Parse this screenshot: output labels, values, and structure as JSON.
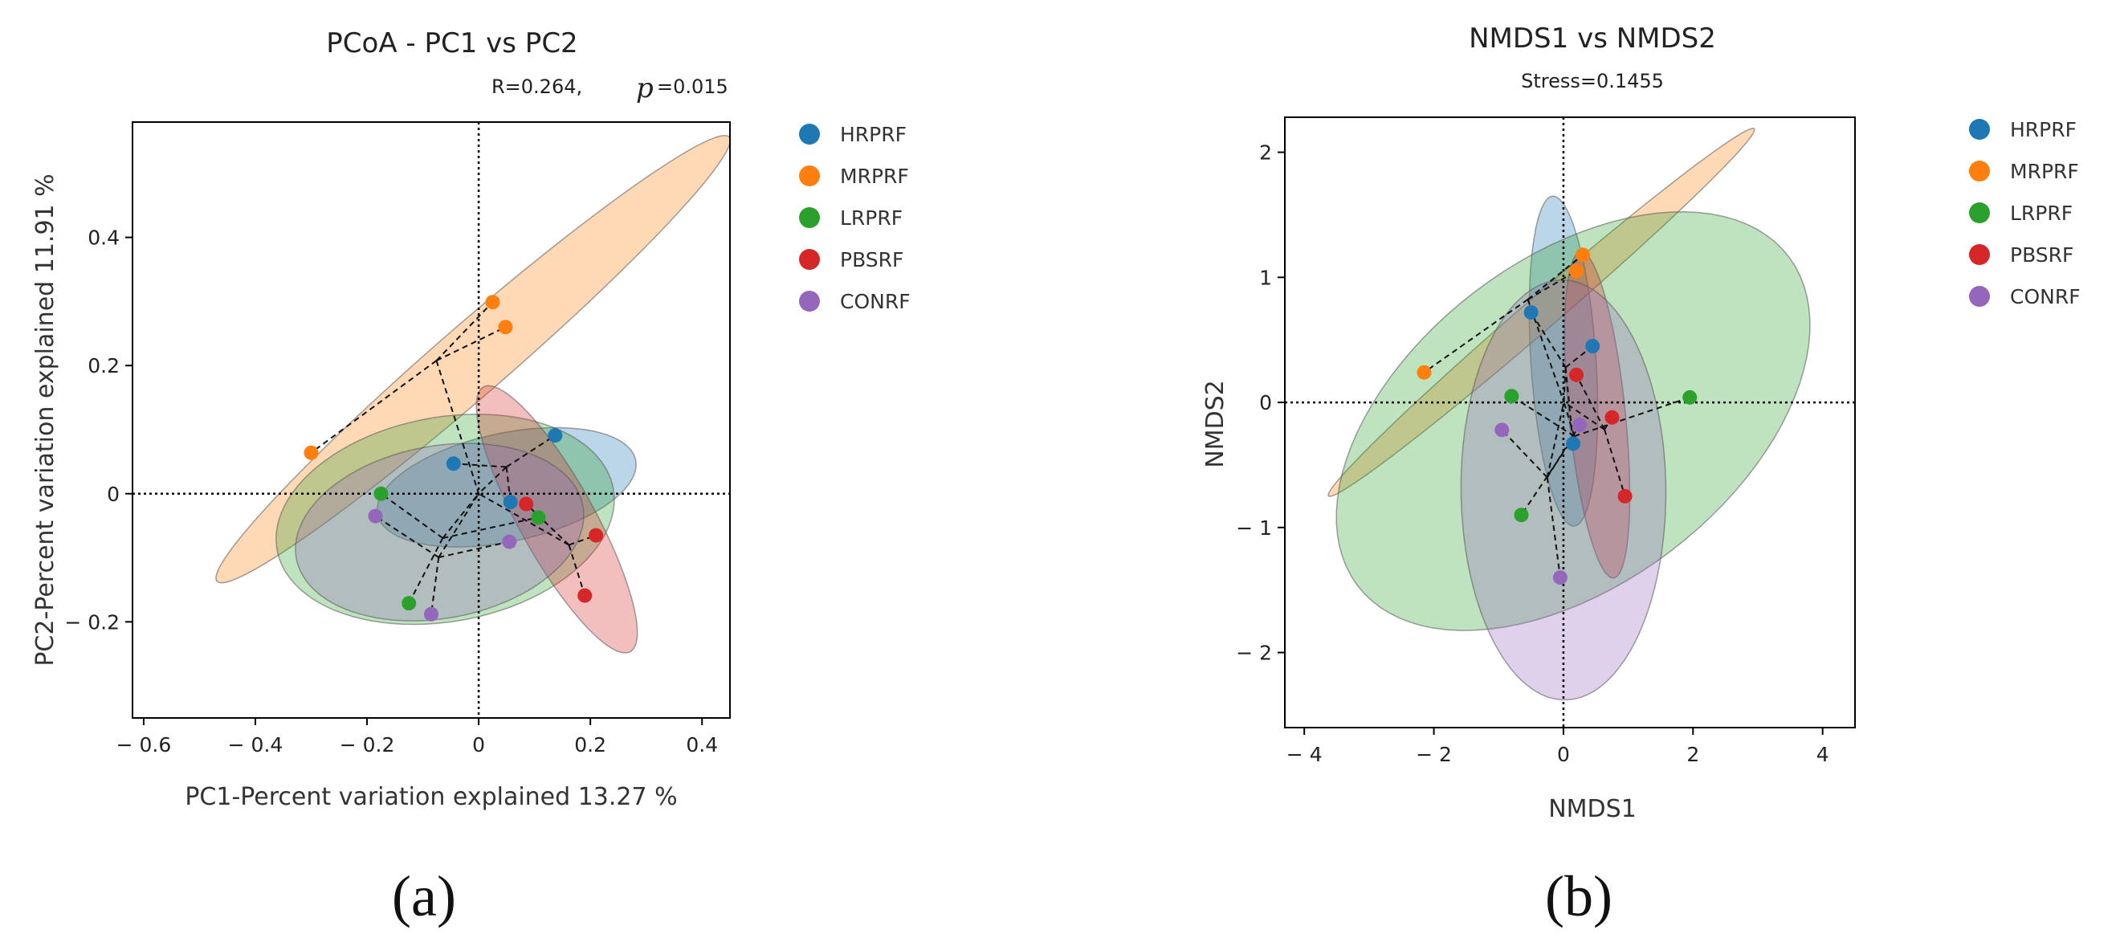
{
  "chart_data": [
    {
      "type": "scatter",
      "panel_label": "(a)",
      "title": "PCoA - PC1 vs PC2",
      "stat_text": "R=0.264,",
      "p_symbol": "p",
      "p_value": "=0.015",
      "xlabel": "PC1-Percent variation explained 13.27 %",
      "ylabel": "PC2-Percent variation explained 11.91 %",
      "xlim": [
        -0.62,
        0.45
      ],
      "ylim": [
        -0.35,
        0.58
      ],
      "xticks": [
        -0.6,
        -0.4,
        -0.2,
        0,
        0.2,
        0.4
      ],
      "xtick_labels": [
        "− 0.6",
        "− 0.4",
        "− 0.2",
        "0",
        "0.2",
        "0.4"
      ],
      "yticks": [
        -0.2,
        0,
        0.2,
        0.4
      ],
      "ytick_labels": [
        "− 0.2",
        "0",
        "0.2",
        "0.4"
      ],
      "legend_position": "right",
      "series": [
        {
          "name": "HRPRF",
          "color": "#1f77b4",
          "points": [
            [
              -0.045,
              0.047
            ],
            [
              0.137,
              0.091
            ],
            [
              0.057,
              -0.013
            ]
          ],
          "ellipse": {
            "cx": 0.05,
            "cy": 0.01,
            "rx": 0.235,
            "ry": 0.085,
            "angle": 10
          }
        },
        {
          "name": "MRPRF",
          "color": "#ff7f0e",
          "points": [
            [
              0.025,
              0.299
            ],
            [
              0.048,
              0.26
            ],
            [
              -0.3,
              0.064
            ]
          ],
          "ellipse": {
            "cx": -0.01,
            "cy": 0.21,
            "rx": 0.575,
            "ry": 0.058,
            "angle": 37
          }
        },
        {
          "name": "LRPRF",
          "color": "#2ca02c",
          "points": [
            [
              -0.175,
              0.0
            ],
            [
              0.107,
              -0.037
            ],
            [
              -0.125,
              -0.171
            ]
          ],
          "ellipse": {
            "cx": -0.06,
            "cy": -0.04,
            "rx": 0.305,
            "ry": 0.16,
            "angle": 8
          }
        },
        {
          "name": "PBSRF",
          "color": "#d62728",
          "points": [
            [
              0.085,
              -0.016
            ],
            [
              0.21,
              -0.065
            ],
            [
              0.19,
              -0.159
            ]
          ],
          "ellipse": {
            "cx": 0.14,
            "cy": -0.04,
            "rx": 0.245,
            "ry": 0.065,
            "angle": -57
          }
        },
        {
          "name": "CONRF",
          "color": "#9467bd",
          "points": [
            [
              -0.185,
              -0.035
            ],
            [
              0.055,
              -0.075
            ],
            [
              -0.085,
              -0.188
            ]
          ],
          "ellipse": {
            "cx": -0.07,
            "cy": -0.06,
            "rx": 0.26,
            "ry": 0.135,
            "angle": 8
          }
        }
      ]
    },
    {
      "type": "scatter",
      "panel_label": "(b)",
      "title": "NMDS1 vs NMDS2",
      "stat_text": "Stress=0.1455",
      "xlabel": "NMDS1",
      "ylabel": "NMDS2",
      "xlim": [
        -4.3,
        4.5
      ],
      "ylim": [
        -2.6,
        2.28
      ],
      "xticks": [
        -4,
        -2,
        0,
        2,
        4
      ],
      "xtick_labels": [
        "− 4",
        "− 2",
        "0",
        "2",
        "4"
      ],
      "yticks": [
        -2,
        -1,
        0,
        1,
        2
      ],
      "ytick_labels": [
        "− 2",
        "− 1",
        "0",
        "1",
        "2"
      ],
      "legend_position": "right",
      "series": [
        {
          "name": "HRPRF",
          "color": "#1f77b4",
          "points": [
            [
              -0.5,
              0.72
            ],
            [
              0.45,
              0.45
            ],
            [
              0.15,
              -0.33
            ]
          ],
          "ellipse": {
            "cx": 0.0,
            "cy": 0.33,
            "rx": 1.33,
            "ry": 0.5,
            "angle": 98
          }
        },
        {
          "name": "MRPRF",
          "color": "#ff7f0e",
          "points": [
            [
              0.3,
              1.18
            ],
            [
              0.2,
              1.05
            ],
            [
              -2.15,
              0.24
            ]
          ],
          "ellipse": {
            "cx": -0.34,
            "cy": 0.72,
            "rx": 3.6,
            "ry": 0.16,
            "angle": 24
          }
        },
        {
          "name": "LRPRF",
          "color": "#2ca02c",
          "points": [
            [
              -0.8,
              0.05
            ],
            [
              1.95,
              0.04
            ],
            [
              -0.65,
              -0.9
            ]
          ],
          "ellipse": {
            "cx": 0.15,
            "cy": -0.15,
            "rx": 3.75,
            "ry": 1.45,
            "angle": 14
          }
        },
        {
          "name": "PBSRF",
          "color": "#d62728",
          "points": [
            [
              0.2,
              0.22
            ],
            [
              0.75,
              -0.12
            ],
            [
              0.95,
              -0.75
            ]
          ],
          "ellipse": {
            "cx": 0.52,
            "cy": -0.1,
            "rx": 1.33,
            "ry": 0.43,
            "angle": 102
          }
        },
        {
          "name": "CONRF",
          "color": "#9467bd",
          "points": [
            [
              -0.95,
              -0.22
            ],
            [
              0.25,
              -0.18
            ],
            [
              -0.05,
              -1.4
            ]
          ],
          "ellipse": {
            "cx": 0.0,
            "cy": -0.7,
            "rx": 1.68,
            "ry": 1.58,
            "angle": 96
          }
        }
      ]
    }
  ]
}
